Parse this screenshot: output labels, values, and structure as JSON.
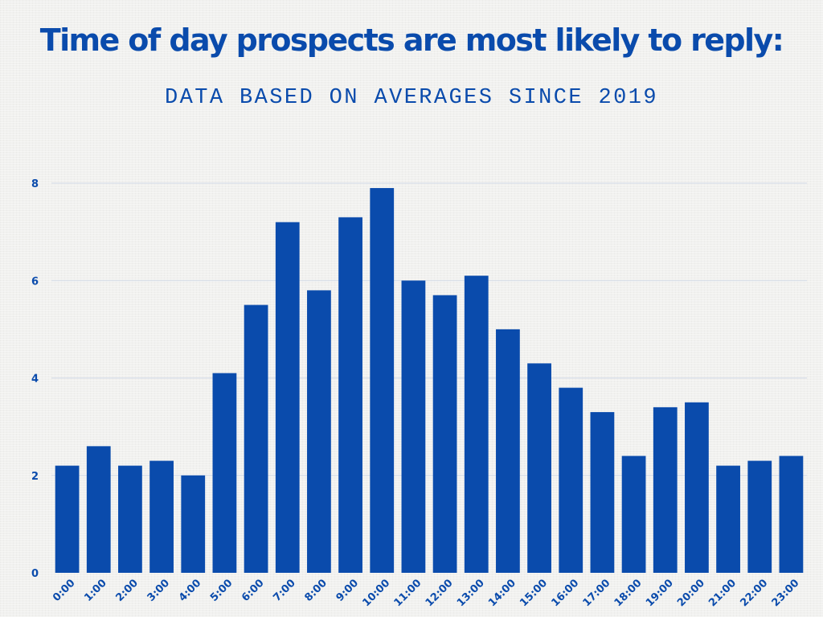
{
  "colors": {
    "primary": "#0a4bac",
    "gridline": "#d3dbe8",
    "background": "#f1f1ef"
  },
  "chart_data": {
    "type": "bar",
    "title": "Time of day prospects are most likely to reply:",
    "subtitle": "DATA BASED ON AVERAGES SINCE 2019",
    "xlabel": "",
    "ylabel": "",
    "categories": [
      "0:00",
      "1:00",
      "2:00",
      "3:00",
      "4:00",
      "5:00",
      "6:00",
      "7:00",
      "8:00",
      "9:00",
      "10:00",
      "11:00",
      "12:00",
      "13:00",
      "14:00",
      "15:00",
      "16:00",
      "17:00",
      "18:00",
      "19:00",
      "20:00",
      "21:00",
      "22:00",
      "23:00"
    ],
    "values": [
      2.2,
      2.6,
      2.2,
      2.3,
      2.0,
      4.1,
      5.5,
      7.2,
      5.8,
      7.3,
      7.9,
      6.0,
      5.7,
      6.1,
      5.0,
      4.3,
      3.8,
      3.3,
      2.4,
      3.4,
      3.5,
      2.2,
      2.3,
      2.4
    ],
    "ylim": [
      0,
      8
    ],
    "yticks": [
      "0",
      "2",
      "4",
      "6",
      "8"
    ],
    "grid": true,
    "legend": "none"
  }
}
